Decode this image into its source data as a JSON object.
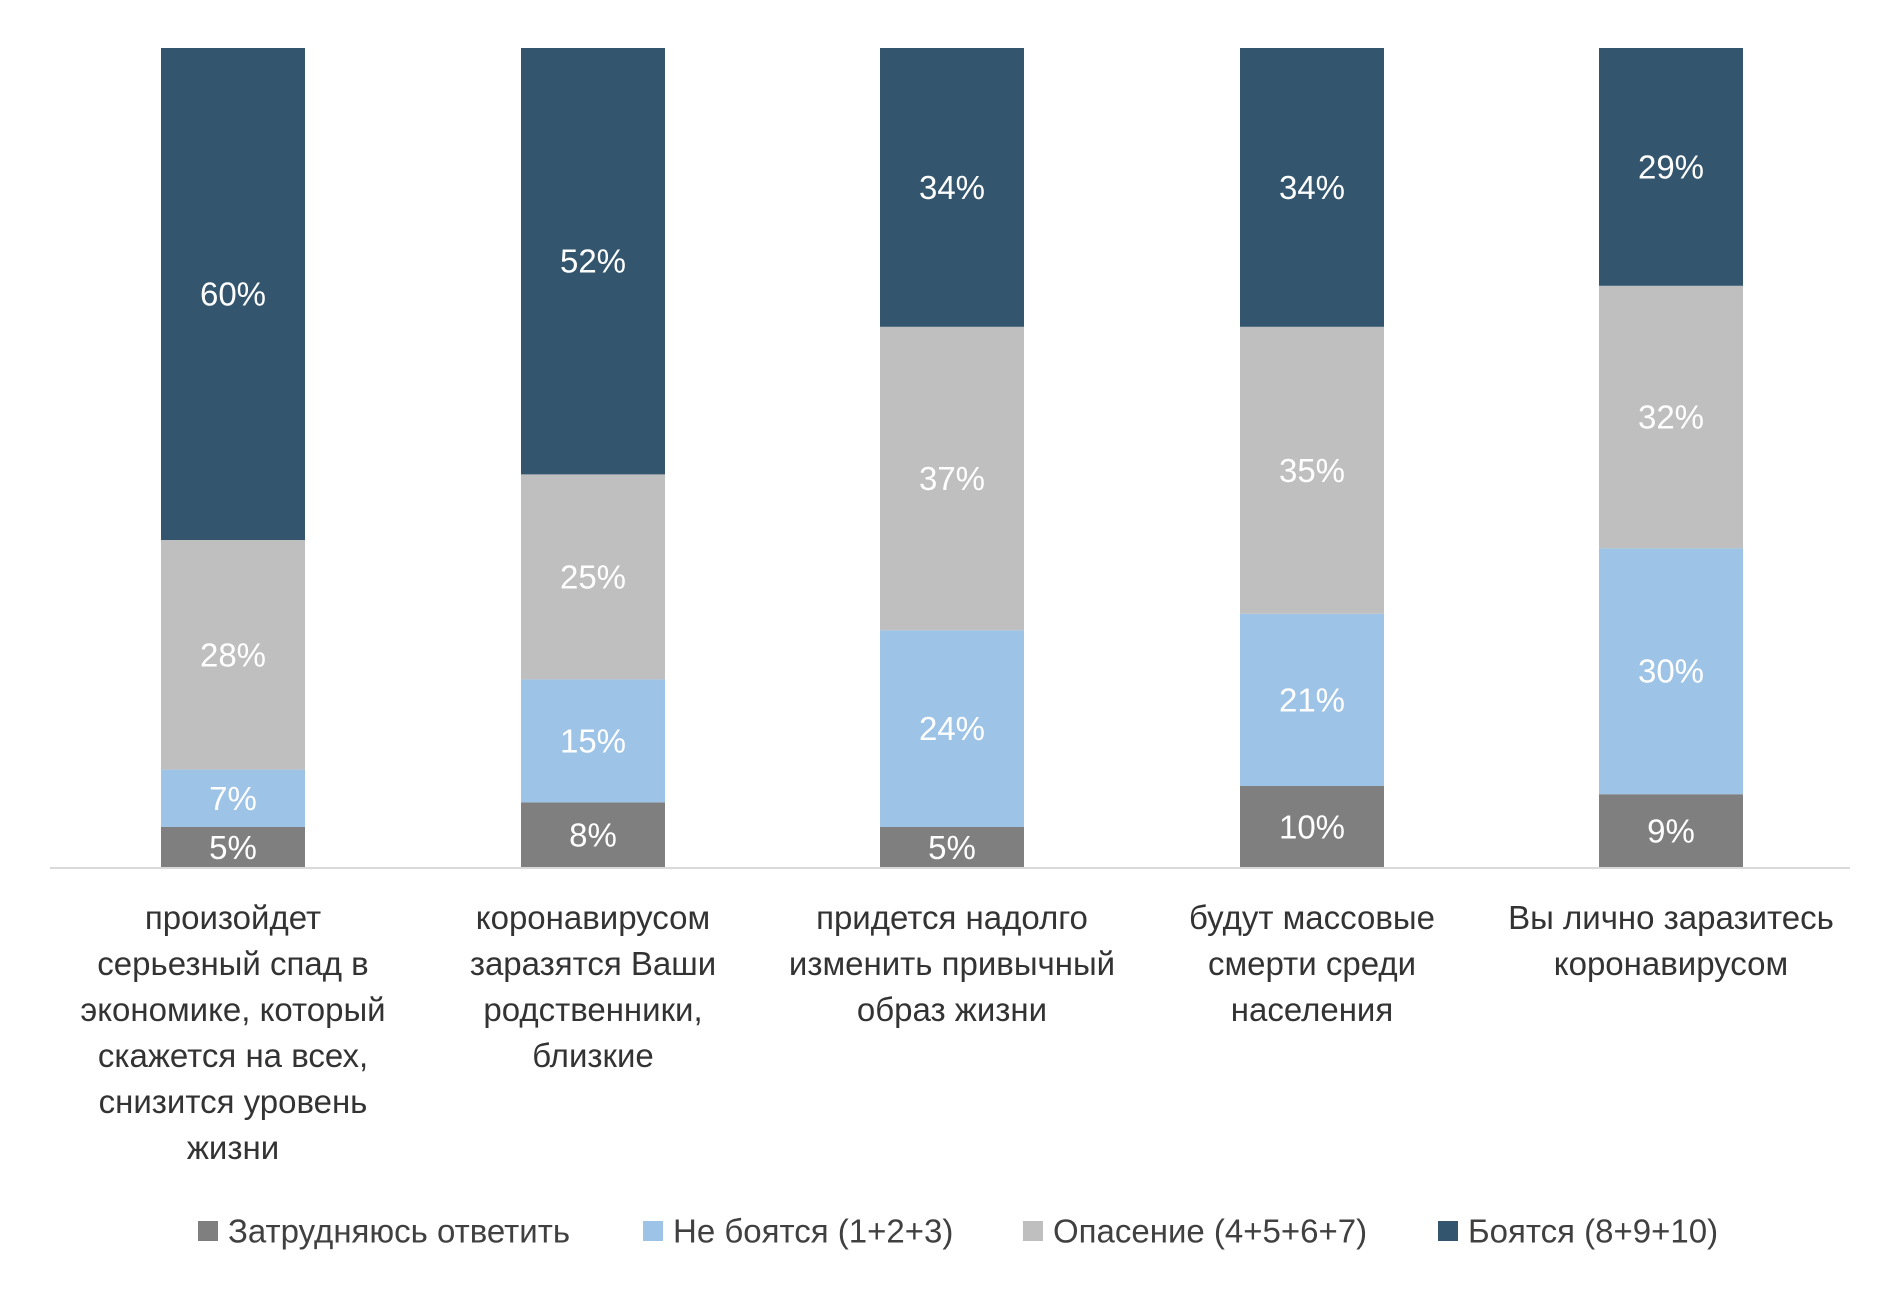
{
  "chart_data": {
    "type": "bar",
    "stacked": true,
    "orientation": "vertical",
    "title": "",
    "xlabel": "",
    "ylabel": "",
    "ylim": [
      0,
      100
    ],
    "grid": false,
    "legend_position": "bottom",
    "categories": [
      [
        "произойдет",
        "серьезный спад в",
        "экономике, который",
        "скажется на всех,",
        "снизится уровень",
        "жизни"
      ],
      [
        "коронавирусом",
        "заразятся Ваши",
        "родственники,",
        "близкие"
      ],
      [
        "придется надолго",
        "изменить привычный",
        "образ жизни"
      ],
      [
        "будут массовые",
        "смерти среди",
        "населения"
      ],
      [
        "Вы лично заразитесь",
        "коронавирусом"
      ]
    ],
    "series": [
      {
        "name": "Затрудняюсь ответить",
        "color": "#7f7f7f",
        "values": [
          5,
          8,
          5,
          10,
          9
        ]
      },
      {
        "name": "Не боятся (1+2+3)",
        "color": "#9dc3e6",
        "values": [
          7,
          15,
          24,
          21,
          30
        ]
      },
      {
        "name": "Опасение (4+5+6+7)",
        "color": "#bfbfbf",
        "values": [
          28,
          25,
          37,
          35,
          32
        ]
      },
      {
        "name": "Боятся (8+9+10)",
        "color": "#33566e",
        "values": [
          60,
          52,
          34,
          34,
          29
        ]
      }
    ],
    "data_labels": [
      [
        "5%",
        "8%",
        "5%",
        "10%",
        "9%"
      ],
      [
        "7%",
        "15%",
        "24%",
        "21%",
        "30%"
      ],
      [
        "28%",
        "25%",
        "37%",
        "35%",
        "32%"
      ],
      [
        "60%",
        "52%",
        "34%",
        "34%",
        "29%"
      ]
    ]
  }
}
